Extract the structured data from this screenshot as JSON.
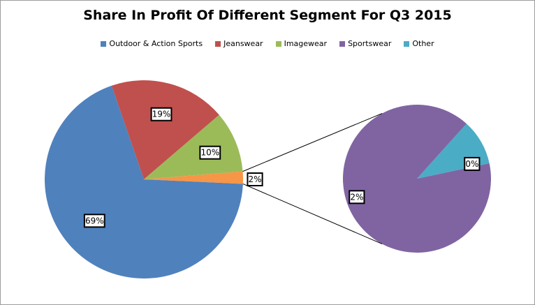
{
  "chart_data": {
    "type": "pie",
    "title": "Share In Profit Of Different Segment For Q3 2015",
    "legend_position": "top",
    "slices": [
      {
        "name": "Outdoor & Action Sports",
        "label": "69%",
        "color": "#4F81BD"
      },
      {
        "name": "Jeanswear",
        "label": "19%",
        "color": "#C0504D"
      },
      {
        "name": "Imagewear",
        "label": "10%",
        "color": "#9BBB59"
      },
      {
        "name": "Sportswear",
        "label": "2%",
        "color": "#8064A2"
      },
      {
        "name": "Other",
        "label": "0%",
        "color": "#4BACC6"
      }
    ],
    "main_pie": [
      {
        "name": "Outdoor & Action Sports",
        "value": 69,
        "label": "69%",
        "color": "#4F81BD"
      },
      {
        "name": "Jeanswear",
        "value": 19,
        "label": "19%",
        "color": "#C0504D"
      },
      {
        "name": "Imagewear",
        "value": 10,
        "label": "10%",
        "color": "#9BBB59"
      },
      {
        "name": "Other",
        "value": 2,
        "label": "2%",
        "color": "#F79646"
      }
    ],
    "secondary_pie": [
      {
        "name": "Sportswear",
        "value": 90,
        "label": "2%",
        "color": "#8064A2"
      },
      {
        "name": "Other",
        "value": 10,
        "label": "0%",
        "color": "#4BACC6"
      }
    ]
  }
}
